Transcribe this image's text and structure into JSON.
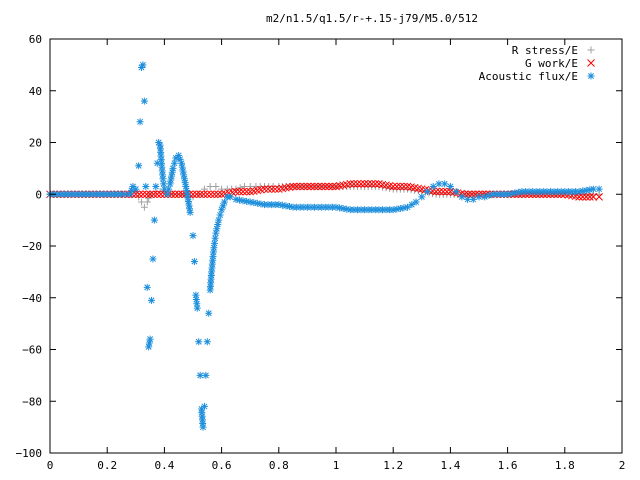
{
  "chart_data": {
    "type": "scatter",
    "title": "m2/n1.5/q1.5/r-+.15-j79/M5.0/512",
    "xlim": [
      0,
      2
    ],
    "ylim": [
      -100,
      60
    ],
    "x_ticks": [
      0,
      0.2,
      0.4,
      0.6,
      0.8,
      1,
      1.2,
      1.4,
      1.6,
      1.8,
      2
    ],
    "x_tick_labels": [
      "0",
      "0.2",
      "0.4",
      "0.6",
      "0.8",
      "1",
      "1.2",
      "1.4",
      "1.6",
      "1.8",
      "2"
    ],
    "y_ticks": [
      -100,
      -80,
      -60,
      -40,
      -20,
      0,
      20,
      40,
      60
    ],
    "y_tick_labels": [
      "−100",
      "−80",
      "−60",
      "−40",
      "−20",
      "0",
      "20",
      "40",
      "60"
    ],
    "grid": false,
    "legend_position": "top-right",
    "series": [
      {
        "name": "R stress/E",
        "marker": "plus",
        "color": "#a0a0a0",
        "points": [
          [
            0.0,
            0
          ],
          [
            0.1,
            0
          ],
          [
            0.2,
            0
          ],
          [
            0.28,
            0
          ],
          [
            0.3,
            1
          ],
          [
            0.31,
            -1
          ],
          [
            0.32,
            -3
          ],
          [
            0.33,
            -5
          ],
          [
            0.34,
            -3
          ],
          [
            0.35,
            0
          ],
          [
            0.37,
            1
          ],
          [
            0.4,
            1
          ],
          [
            0.43,
            0
          ],
          [
            0.46,
            0
          ],
          [
            0.48,
            0
          ],
          [
            0.5,
            -1
          ],
          [
            0.52,
            0
          ],
          [
            0.54,
            2
          ],
          [
            0.56,
            3
          ],
          [
            0.58,
            3
          ],
          [
            0.6,
            2
          ],
          [
            0.62,
            2
          ],
          [
            0.65,
            2
          ],
          [
            0.68,
            3
          ],
          [
            0.7,
            3
          ],
          [
            0.72,
            3
          ],
          [
            0.75,
            3
          ],
          [
            0.78,
            3
          ],
          [
            0.8,
            3
          ],
          [
            0.85,
            3
          ],
          [
            0.9,
            3
          ],
          [
            0.95,
            3
          ],
          [
            1.0,
            3
          ],
          [
            1.05,
            3
          ],
          [
            1.1,
            3
          ],
          [
            1.15,
            3
          ],
          [
            1.2,
            2
          ],
          [
            1.25,
            2
          ],
          [
            1.3,
            1
          ],
          [
            1.35,
            0
          ],
          [
            1.4,
            0
          ],
          [
            1.45,
            0
          ],
          [
            1.5,
            0
          ],
          [
            1.55,
            0
          ],
          [
            1.6,
            0
          ],
          [
            1.65,
            0
          ],
          [
            1.7,
            0
          ],
          [
            1.75,
            0
          ],
          [
            1.8,
            0
          ],
          [
            1.85,
            0
          ],
          [
            1.9,
            0
          ],
          [
            1.92,
            0
          ]
        ]
      },
      {
        "name": "G work/E",
        "marker": "cross",
        "color": "#ff0000",
        "points": [
          [
            0.0,
            0
          ],
          [
            0.1,
            0
          ],
          [
            0.2,
            0
          ],
          [
            0.3,
            0
          ],
          [
            0.4,
            0
          ],
          [
            0.5,
            0
          ],
          [
            0.55,
            0
          ],
          [
            0.6,
            0
          ],
          [
            0.65,
            1
          ],
          [
            0.7,
            1
          ],
          [
            0.75,
            2
          ],
          [
            0.8,
            2
          ],
          [
            0.85,
            3
          ],
          [
            0.9,
            3
          ],
          [
            0.95,
            3
          ],
          [
            1.0,
            3
          ],
          [
            1.05,
            4
          ],
          [
            1.1,
            4
          ],
          [
            1.15,
            4
          ],
          [
            1.2,
            3
          ],
          [
            1.25,
            3
          ],
          [
            1.3,
            2
          ],
          [
            1.35,
            1
          ],
          [
            1.4,
            1
          ],
          [
            1.45,
            0
          ],
          [
            1.5,
            0
          ],
          [
            1.55,
            0
          ],
          [
            1.6,
            0
          ],
          [
            1.65,
            0
          ],
          [
            1.7,
            0
          ],
          [
            1.75,
            0
          ],
          [
            1.8,
            0
          ],
          [
            1.85,
            -1
          ],
          [
            1.9,
            -1
          ],
          [
            1.92,
            -1
          ]
        ]
      },
      {
        "name": "Acoustic flux/E",
        "marker": "star",
        "color": "#1e8fdc",
        "points": [
          [
            0.0,
            0
          ],
          [
            0.05,
            0
          ],
          [
            0.1,
            0
          ],
          [
            0.15,
            0
          ],
          [
            0.2,
            0
          ],
          [
            0.25,
            0
          ],
          [
            0.28,
            0
          ],
          [
            0.29,
            3
          ],
          [
            0.3,
            2
          ],
          [
            0.31,
            11
          ],
          [
            0.315,
            28
          ],
          [
            0.32,
            49
          ],
          [
            0.325,
            50
          ],
          [
            0.33,
            36
          ],
          [
            0.335,
            3
          ],
          [
            0.34,
            -36
          ],
          [
            0.345,
            -59
          ],
          [
            0.35,
            -56
          ],
          [
            0.355,
            -41
          ],
          [
            0.36,
            -25
          ],
          [
            0.365,
            -10
          ],
          [
            0.37,
            3
          ],
          [
            0.375,
            12
          ],
          [
            0.38,
            20
          ],
          [
            0.385,
            19
          ],
          [
            0.39,
            12
          ],
          [
            0.395,
            6
          ],
          [
            0.4,
            2
          ],
          [
            0.41,
            0
          ],
          [
            0.42,
            4
          ],
          [
            0.43,
            10
          ],
          [
            0.44,
            14
          ],
          [
            0.45,
            15
          ],
          [
            0.46,
            12
          ],
          [
            0.47,
            6
          ],
          [
            0.48,
            0
          ],
          [
            0.49,
            -7
          ],
          [
            0.5,
            -16
          ],
          [
            0.505,
            -26
          ],
          [
            0.51,
            -39
          ],
          [
            0.515,
            -44
          ],
          [
            0.52,
            -57
          ],
          [
            0.525,
            -70
          ],
          [
            0.53,
            -83
          ],
          [
            0.535,
            -90
          ],
          [
            0.54,
            -82
          ],
          [
            0.545,
            -70
          ],
          [
            0.55,
            -57
          ],
          [
            0.555,
            -46
          ],
          [
            0.56,
            -37
          ],
          [
            0.565,
            -30
          ],
          [
            0.57,
            -24
          ],
          [
            0.575,
            -19
          ],
          [
            0.58,
            -15
          ],
          [
            0.59,
            -10
          ],
          [
            0.6,
            -6
          ],
          [
            0.61,
            -3
          ],
          [
            0.62,
            -1
          ],
          [
            0.63,
            -1
          ],
          [
            0.65,
            -2
          ],
          [
            0.7,
            -3
          ],
          [
            0.75,
            -4
          ],
          [
            0.8,
            -4
          ],
          [
            0.85,
            -5
          ],
          [
            0.9,
            -5
          ],
          [
            0.95,
            -5
          ],
          [
            1.0,
            -5
          ],
          [
            1.05,
            -6
          ],
          [
            1.1,
            -6
          ],
          [
            1.15,
            -6
          ],
          [
            1.2,
            -6
          ],
          [
            1.25,
            -5
          ],
          [
            1.28,
            -3
          ],
          [
            1.3,
            -1
          ],
          [
            1.32,
            1
          ],
          [
            1.34,
            3
          ],
          [
            1.36,
            4
          ],
          [
            1.38,
            4
          ],
          [
            1.4,
            3
          ],
          [
            1.42,
            1
          ],
          [
            1.44,
            -1
          ],
          [
            1.46,
            -2
          ],
          [
            1.48,
            -2
          ],
          [
            1.5,
            -1
          ],
          [
            1.52,
            -1
          ],
          [
            1.55,
            0
          ],
          [
            1.6,
            0
          ],
          [
            1.65,
            1
          ],
          [
            1.7,
            1
          ],
          [
            1.75,
            1
          ],
          [
            1.8,
            1
          ],
          [
            1.85,
            1
          ],
          [
            1.9,
            2
          ],
          [
            1.92,
            2
          ]
        ]
      }
    ]
  }
}
